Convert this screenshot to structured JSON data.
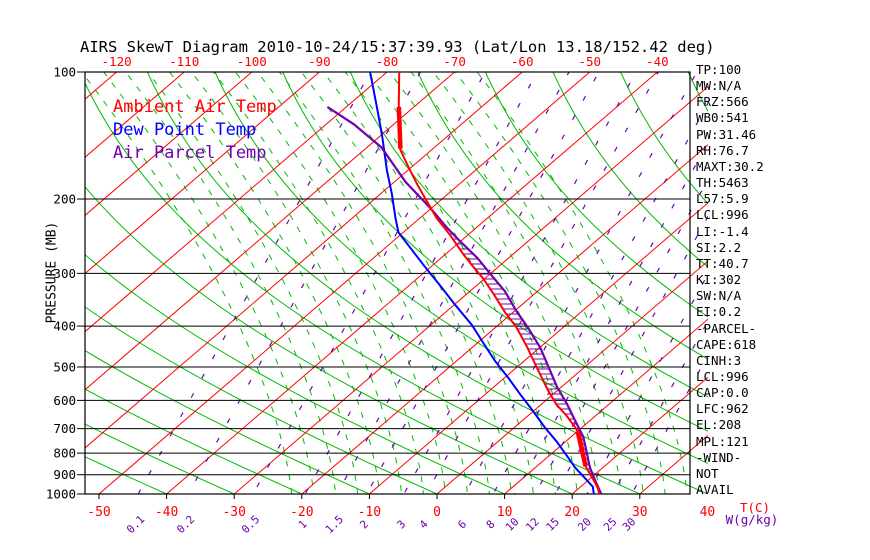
{
  "title": "AIRS SkewT Diagram 2010-10-24/15:37:39.93 (Lat/Lon 13.18/152.42 deg)",
  "legend": {
    "items": [
      {
        "label": "Ambient Air Temp",
        "color": "#ff0000"
      },
      {
        "label": "Dew Point Temp",
        "color": "#0000ff"
      },
      {
        "label": "Air Parcel Temp",
        "color": "#7000b0"
      }
    ]
  },
  "axes": {
    "pressure_axis_label": "PRESSURE (MB)",
    "pressure_ticks": [
      100,
      200,
      300,
      400,
      500,
      600,
      700,
      800,
      900,
      1000
    ],
    "top_temp_ticks": [
      -120,
      -110,
      -100,
      -90,
      -80,
      -70,
      -60,
      -50,
      -40
    ],
    "bottom_temp_ticks": [
      -50,
      -40,
      -30,
      -20,
      -10,
      0,
      10,
      20,
      30,
      40
    ],
    "temp_unit_label": "T(C)",
    "mixing_unit_label": "W(g/kg)",
    "mixing_ratio_ticks": [
      {
        "value": "0.1",
        "t_surface": -44.2
      },
      {
        "value": "0.2",
        "t_surface": -36.8
      },
      {
        "value": "0.5",
        "t_surface": -27.2
      },
      {
        "value": "1",
        "t_surface": -19.5
      },
      {
        "value": "1.5",
        "t_surface": -14.8
      },
      {
        "value": "2",
        "t_surface": -10.4
      },
      {
        "value": "3",
        "t_surface": -4.9
      },
      {
        "value": "4",
        "t_surface": -1.6
      },
      {
        "value": "6",
        "t_surface": 4.1
      },
      {
        "value": "8",
        "t_surface": 8.3
      },
      {
        "value": "10",
        "t_surface": 11.5
      },
      {
        "value": "12",
        "t_surface": 14.5
      },
      {
        "value": "15",
        "t_surface": 17.5
      },
      {
        "value": "20",
        "t_surface": 22.2
      },
      {
        "value": "25",
        "t_surface": 26.0
      },
      {
        "value": "30",
        "t_surface": 28.8
      }
    ]
  },
  "stats_panel": {
    "lines": [
      "TP:100",
      "MW:N/A",
      "FRZ:566",
      "WB0:541",
      "PW:31.46",
      "RH:76.7",
      "MAXT:30.2",
      "TH:5463",
      "L57:5.9",
      "LCL:996",
      "LI:-1.4",
      "SI:2.2",
      "TT:40.7",
      "KI:302",
      "SW:N/A",
      "EI:0.2",
      "-PARCEL-",
      "CAPE:618",
      "CINH:3",
      "LCL:996",
      "CAP:0.0",
      "LFC:962",
      "EL:208",
      "MPL:121",
      "-WIND-",
      "NOT",
      "AVAIL"
    ]
  },
  "chart_data": {
    "type": "line",
    "title": "AIRS SkewT Diagram 2010-10-24/15:37:39.93",
    "x_axis": {
      "label": "T(C)",
      "surface_range": [
        -50,
        40
      ]
    },
    "y_axis": {
      "label": "PRESSURE (MB)",
      "scale": "log",
      "range": [
        100,
        1000
      ]
    },
    "series": [
      {
        "name": "Ambient Air Temp",
        "color": "#ff0000",
        "points_p_t": [
          [
            100,
            -78.2
          ],
          [
            120,
            -72.5
          ],
          [
            153,
            -64.6
          ],
          [
            169,
            -60.2
          ],
          [
            185,
            -56.1
          ],
          [
            204,
            -51.5
          ],
          [
            222,
            -47.5
          ],
          [
            243,
            -42.7
          ],
          [
            269,
            -37.6
          ],
          [
            287,
            -34.2
          ],
          [
            307,
            -30.5
          ],
          [
            334,
            -26.3
          ],
          [
            371,
            -21.2
          ],
          [
            402,
            -17.0
          ],
          [
            448,
            -12.0
          ],
          [
            506,
            -6.6
          ],
          [
            567,
            -1.5
          ],
          [
            614,
            2.3
          ],
          [
            650,
            5.5
          ],
          [
            694,
            8.9
          ],
          [
            728,
            11.2
          ],
          [
            793,
            14.4
          ],
          [
            854,
            16.9
          ],
          [
            916,
            20.2
          ],
          [
            966,
            22.7
          ],
          [
            1000,
            24.0
          ]
        ]
      },
      {
        "name": "Dew Point Temp",
        "color": "#0000ff",
        "points_p_t": [
          [
            100,
            -82.5
          ],
          [
            125,
            -74.3
          ],
          [
            143,
            -69.4
          ],
          [
            171,
            -63.1
          ],
          [
            194,
            -58.4
          ],
          [
            222,
            -53.6
          ],
          [
            240,
            -50.7
          ],
          [
            261,
            -46.3
          ],
          [
            291,
            -40.6
          ],
          [
            320,
            -35.5
          ],
          [
            356,
            -29.9
          ],
          [
            397,
            -24.0
          ],
          [
            439,
            -19.1
          ],
          [
            482,
            -14.5
          ],
          [
            531,
            -9.4
          ],
          [
            582,
            -4.7
          ],
          [
            632,
            -0.4
          ],
          [
            694,
            4.4
          ],
          [
            753,
            8.8
          ],
          [
            808,
            12.4
          ],
          [
            866,
            15.9
          ],
          [
            916,
            19.1
          ],
          [
            961,
            21.8
          ],
          [
            1000,
            23.2
          ]
        ]
      },
      {
        "name": "Air Parcel Temp",
        "color": "#7000b0",
        "points_p_t": [
          [
            121,
            -82.8
          ],
          [
            133,
            -75.9
          ],
          [
            151,
            -67.8
          ],
          [
            182,
            -58.4
          ],
          [
            210,
            -50.2
          ],
          [
            234,
            -44.3
          ],
          [
            253,
            -39.8
          ],
          [
            276,
            -34.6
          ],
          [
            303,
            -29.6
          ],
          [
            331,
            -24.8
          ],
          [
            368,
            -19.8
          ],
          [
            404,
            -15.1
          ],
          [
            450,
            -9.9
          ],
          [
            503,
            -5.1
          ],
          [
            557,
            -0.7
          ],
          [
            610,
            3.6
          ],
          [
            670,
            7.8
          ],
          [
            732,
            11.8
          ],
          [
            793,
            14.8
          ],
          [
            862,
            17.9
          ],
          [
            921,
            20.7
          ],
          [
            975,
            23.2
          ],
          [
            1000,
            24.3
          ]
        ]
      }
    ],
    "ambient_thick_segments_p": [
      [
        121,
        152
      ],
      [
        710,
        860
      ]
    ],
    "cape_hatch_p_range": [
      217,
      978
    ],
    "grid": {
      "isotherms_c": {
        "min": -130,
        "max": 40,
        "step": 10,
        "color": "#ff0000"
      },
      "dry_adiabats_theta_c": {
        "min": -40,
        "max": 120,
        "step": 10,
        "color": "#00bb00"
      },
      "moist_adiabats_t_surface": {
        "min": -21.5,
        "max": 37.5,
        "step": 3.25,
        "color": "#00bb00"
      },
      "mixing_line_color": "#7000b0",
      "pressure_lines_mb": [
        200,
        300,
        400,
        500,
        600,
        700,
        800,
        900
      ]
    }
  }
}
